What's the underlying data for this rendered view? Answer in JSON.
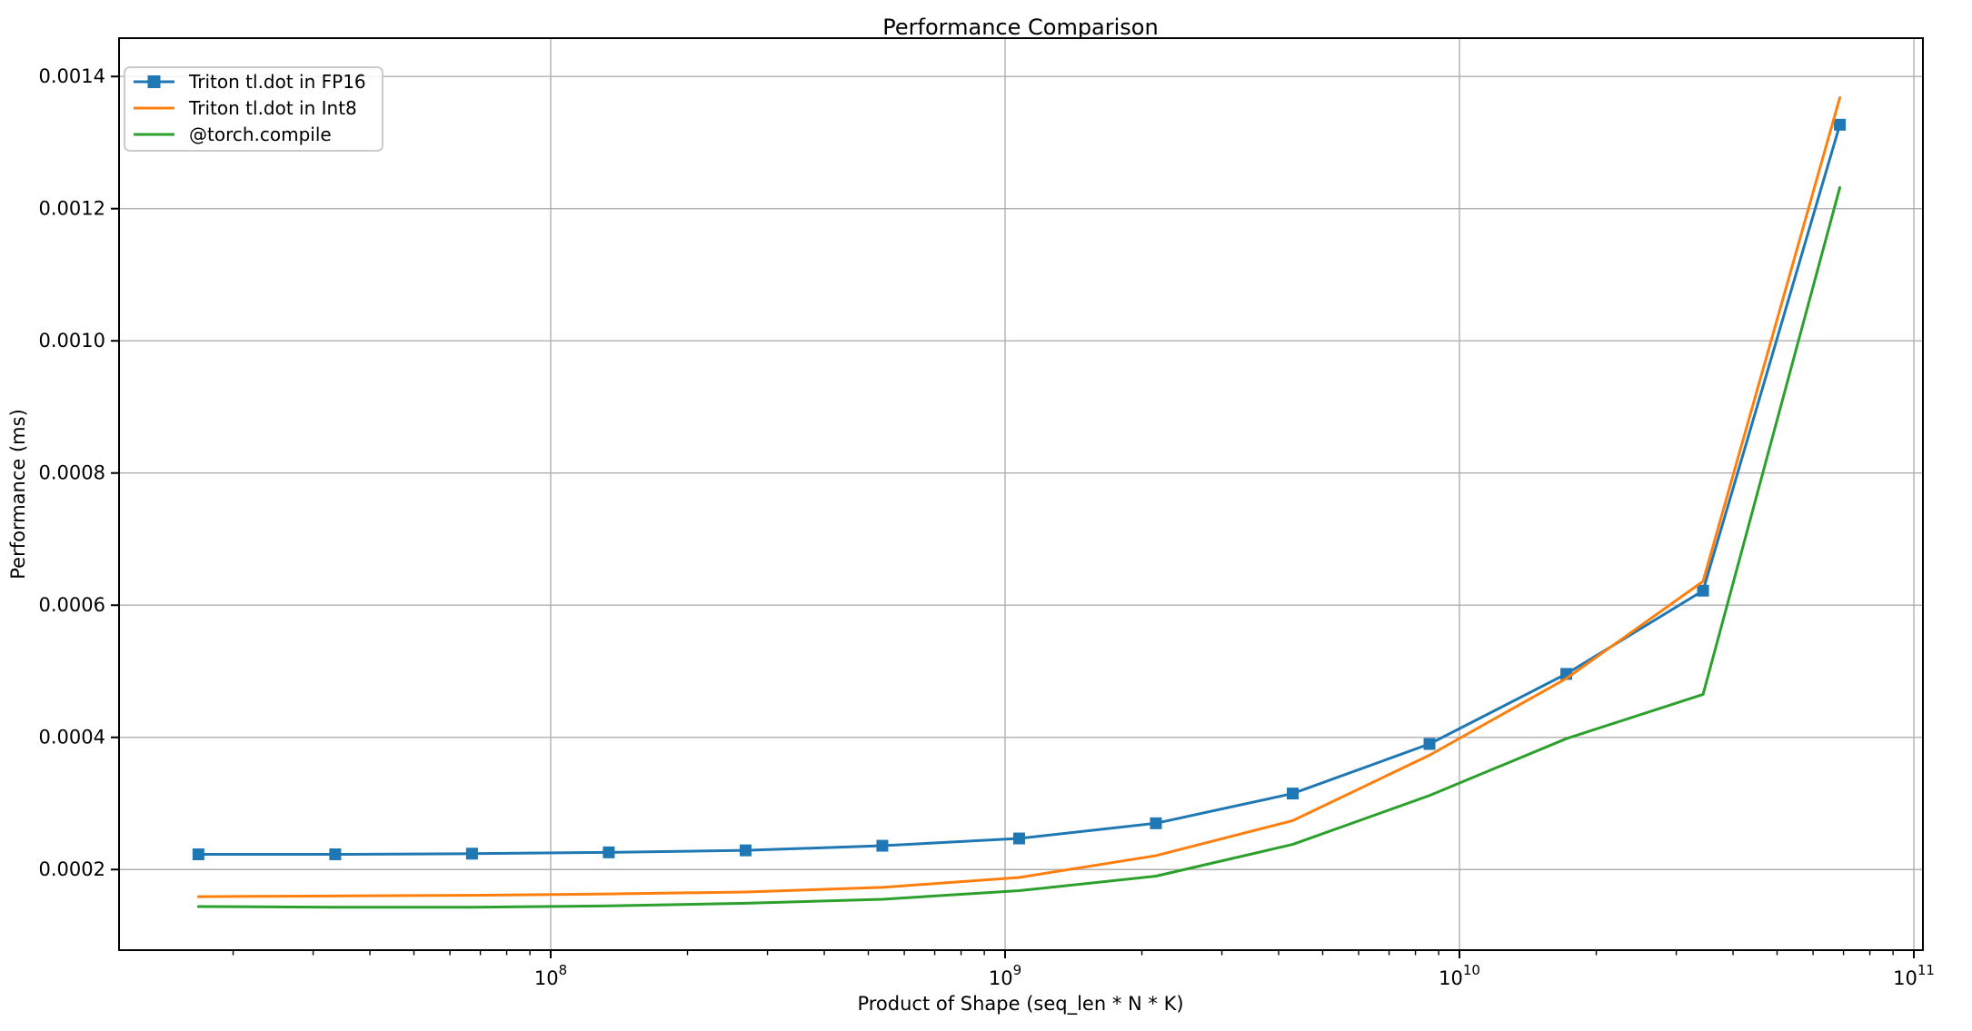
{
  "figure": {
    "background": "#ffffff"
  },
  "chart_data": {
    "type": "line",
    "title": "Performance Comparison",
    "xlabel": "Product of Shape (seq_len * N * K)",
    "ylabel": "Performance (ms)",
    "xscale": "log",
    "grid": true,
    "grid_color": "#b0b0b0",
    "legend_position": "upper left",
    "xlim": [
      11220000,
      104700000000
    ],
    "ylim": [
      7.8e-05,
      0.001458
    ],
    "xticks": [
      100000000,
      1000000000,
      10000000000,
      100000000000
    ],
    "xtick_exponents": [
      "8",
      "9",
      "10",
      "11"
    ],
    "xtick_base": "10",
    "yticks": [
      0.0002,
      0.0004,
      0.0006,
      0.0008,
      0.001,
      0.0012,
      0.0014
    ],
    "ytick_labels": [
      "0.0002",
      "0.0004",
      "0.0006",
      "0.0008",
      "0.0010",
      "0.0012",
      "0.0014"
    ],
    "x": [
      16777216,
      33554432,
      67108864,
      134217728,
      268435456,
      536870912,
      1073741824,
      2147483648,
      4294967296,
      8589934592,
      17179869184,
      34359738368,
      68719476736
    ],
    "series": [
      {
        "name": "Triton tl.dot in FP16",
        "color": "#1f77b4",
        "marker": "square",
        "values": [
          0.000223,
          0.000223,
          0.000224,
          0.000226,
          0.000229,
          0.000236,
          0.000247,
          0.00027,
          0.000315,
          0.00039,
          0.000496,
          0.000622,
          0.001327
        ]
      },
      {
        "name": "Triton tl.dot in Int8",
        "color": "#ff7f0e",
        "marker": "none",
        "values": [
          0.000159,
          0.00016,
          0.000161,
          0.000163,
          0.000166,
          0.000173,
          0.000188,
          0.000221,
          0.000274,
          0.000373,
          0.000489,
          0.000636,
          0.001368
        ]
      },
      {
        "name": "@torch.compile",
        "color": "#2ca02c",
        "marker": "none",
        "values": [
          0.000144,
          0.000143,
          0.000143,
          0.000145,
          0.000149,
          0.000155,
          0.000168,
          0.00019,
          0.000238,
          0.000312,
          0.000398,
          0.000465,
          0.001232
        ]
      }
    ]
  }
}
